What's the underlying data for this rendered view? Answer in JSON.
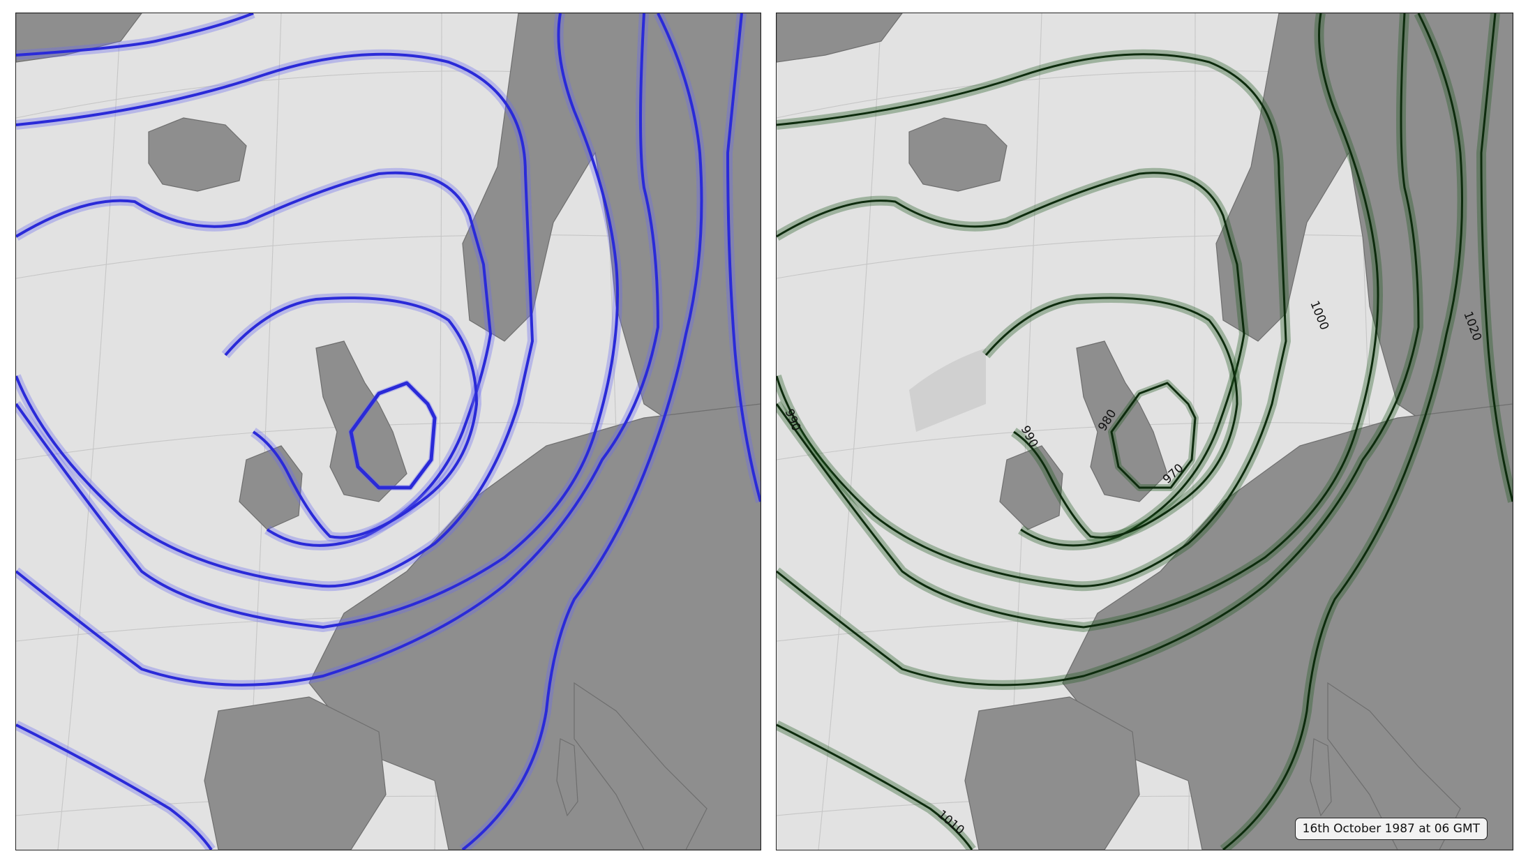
{
  "panels": [
    {
      "id": "ensemble-spaghetti",
      "contour_color": "#2a2ad8"
    },
    {
      "id": "ensemble-mean",
      "contour_color": "#0d2b0d"
    }
  ],
  "contour_labels": [
    "990",
    "1000",
    "1020",
    "980",
    "990",
    "970",
    "1010"
  ],
  "timestamp": "16th October 1987 at 06 GMT",
  "land_color": "#8e8e8e",
  "sea_color": "#e2e2e2"
}
